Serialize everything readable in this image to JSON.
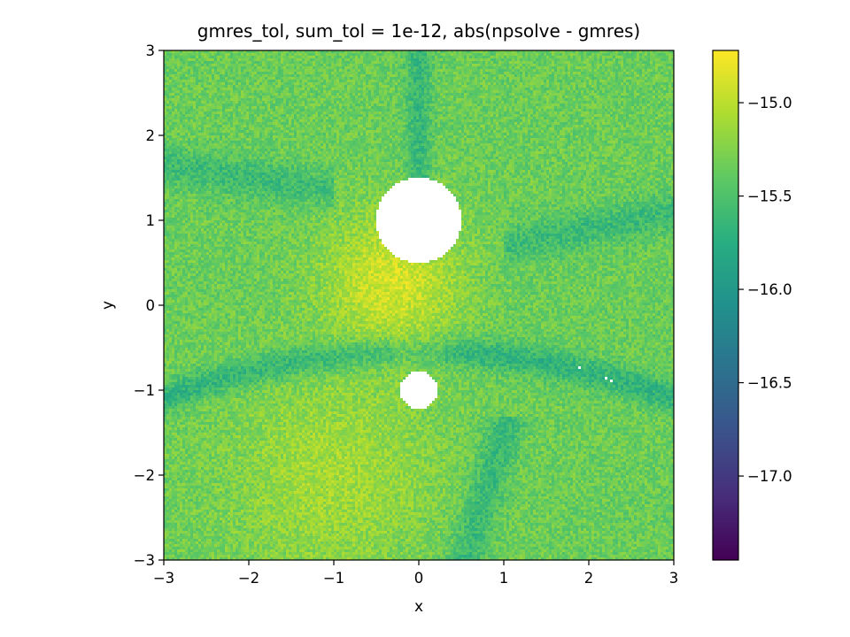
{
  "chart_data": {
    "type": "heatmap",
    "title": "gmres_tol, sum_tol = 1e-12, abs(npsolve - gmres)",
    "xlabel": "x",
    "ylabel": "y",
    "xlim": [
      -3,
      3
    ],
    "ylim": [
      -3,
      3
    ],
    "xticks": [
      "−3",
      "−2",
      "−1",
      "0",
      "1",
      "2",
      "3"
    ],
    "yticks": [
      "−3",
      "−2",
      "−1",
      "0",
      "1",
      "2",
      "3"
    ],
    "colorbar": {
      "range": [
        -17.45,
        -14.72
      ],
      "colormap": "viridis",
      "ticks": [
        {
          "value": -15.0,
          "label": "−15.0"
        },
        {
          "value": -15.5,
          "label": "−15.5"
        },
        {
          "value": -16.0,
          "label": "−16.0"
        },
        {
          "value": -16.5,
          "label": "−16.5"
        },
        {
          "value": -17.0,
          "label": "−17.0"
        }
      ]
    },
    "masked_discs": [
      {
        "cx": 0.0,
        "cy": 1.0,
        "r": 0.5
      },
      {
        "cx": 0.0,
        "cy": -1.0,
        "r": 0.22
      }
    ],
    "grid": false
  }
}
